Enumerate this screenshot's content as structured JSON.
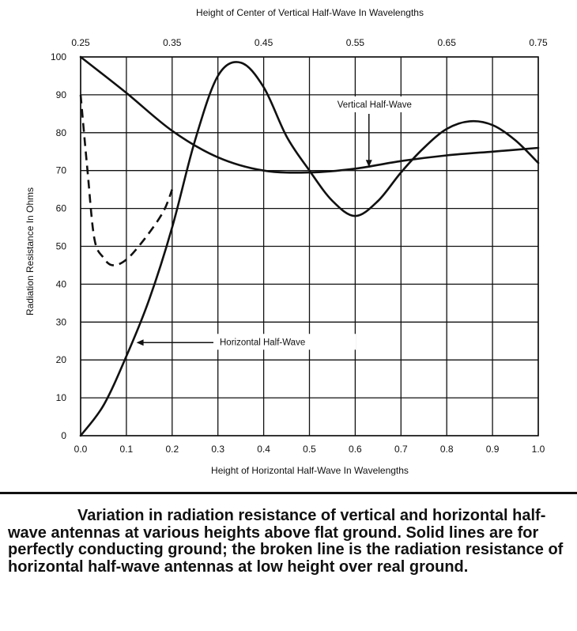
{
  "chart_data": {
    "type": "line",
    "title": "",
    "xlabel": "Height of Horizontal Half-Wave In Wavelengths",
    "x2label": "Height of Center of Vertical Half-Wave In Wavelengths",
    "ylabel": "Radiation Resistance In Ohms",
    "xlim": [
      0,
      1.0
    ],
    "x2lim": [
      0.25,
      0.75
    ],
    "ylim": [
      0,
      100
    ],
    "grid": true,
    "x_ticks": [
      "0.0",
      "0.1",
      "0.2",
      "0.3",
      "0.4",
      "0.5",
      "0.6",
      "0.7",
      "0.8",
      "0.9",
      "1.0"
    ],
    "x2_ticks": [
      "0.25",
      "0.35",
      "0.45",
      "0.55",
      "0.65",
      "0.75"
    ],
    "y_ticks": [
      "0",
      "10",
      "20",
      "30",
      "40",
      "50",
      "60",
      "70",
      "80",
      "90",
      "100"
    ],
    "series": [
      {
        "name": "Horizontal Half-Wave",
        "axis": "bottom",
        "style": "solid",
        "points": [
          [
            0.0,
            0
          ],
          [
            0.05,
            8
          ],
          [
            0.1,
            21
          ],
          [
            0.15,
            36
          ],
          [
            0.2,
            55
          ],
          [
            0.25,
            78
          ],
          [
            0.3,
            95
          ],
          [
            0.35,
            98.5
          ],
          [
            0.4,
            92
          ],
          [
            0.45,
            79
          ],
          [
            0.5,
            70
          ],
          [
            0.55,
            62
          ],
          [
            0.6,
            58
          ],
          [
            0.65,
            62
          ],
          [
            0.7,
            69.5
          ],
          [
            0.75,
            76
          ],
          [
            0.8,
            81
          ],
          [
            0.85,
            83
          ],
          [
            0.9,
            82
          ],
          [
            0.95,
            78
          ],
          [
            1.0,
            72
          ]
        ]
      },
      {
        "name": "Vertical Half-Wave",
        "axis": "top",
        "style": "solid",
        "points": [
          [
            0.25,
            100
          ],
          [
            0.3,
            90.5
          ],
          [
            0.35,
            80.5
          ],
          [
            0.4,
            73.5
          ],
          [
            0.45,
            70
          ],
          [
            0.5,
            69.5
          ],
          [
            0.55,
            70.5
          ],
          [
            0.6,
            72.5
          ],
          [
            0.65,
            74
          ],
          [
            0.7,
            75
          ],
          [
            0.75,
            76
          ]
        ]
      },
      {
        "name": "",
        "axis": "bottom",
        "style": "dashed",
        "points": [
          [
            0.0,
            90
          ],
          [
            0.015,
            70
          ],
          [
            0.03,
            52
          ],
          [
            0.05,
            47
          ],
          [
            0.07,
            45
          ],
          [
            0.1,
            46.5
          ],
          [
            0.14,
            52
          ],
          [
            0.18,
            59
          ],
          [
            0.2,
            65
          ]
        ]
      }
    ],
    "annotations": [
      {
        "text": "Vertical Half-Wave",
        "points_to": [
          0.565,
          70.5
        ],
        "axis": "top"
      },
      {
        "text": "Horizontal Half-Wave",
        "points_to": [
          0.115,
          25
        ],
        "axis": "bottom"
      }
    ]
  },
  "caption": "Variation in radiation resistance of vertical and horizontal half-wave antennas at various heights above flat ground. Solid lines are for perfectly conducting ground; the broken line is the radiation resistance of horizontal half-wave antennas at low height over real ground."
}
